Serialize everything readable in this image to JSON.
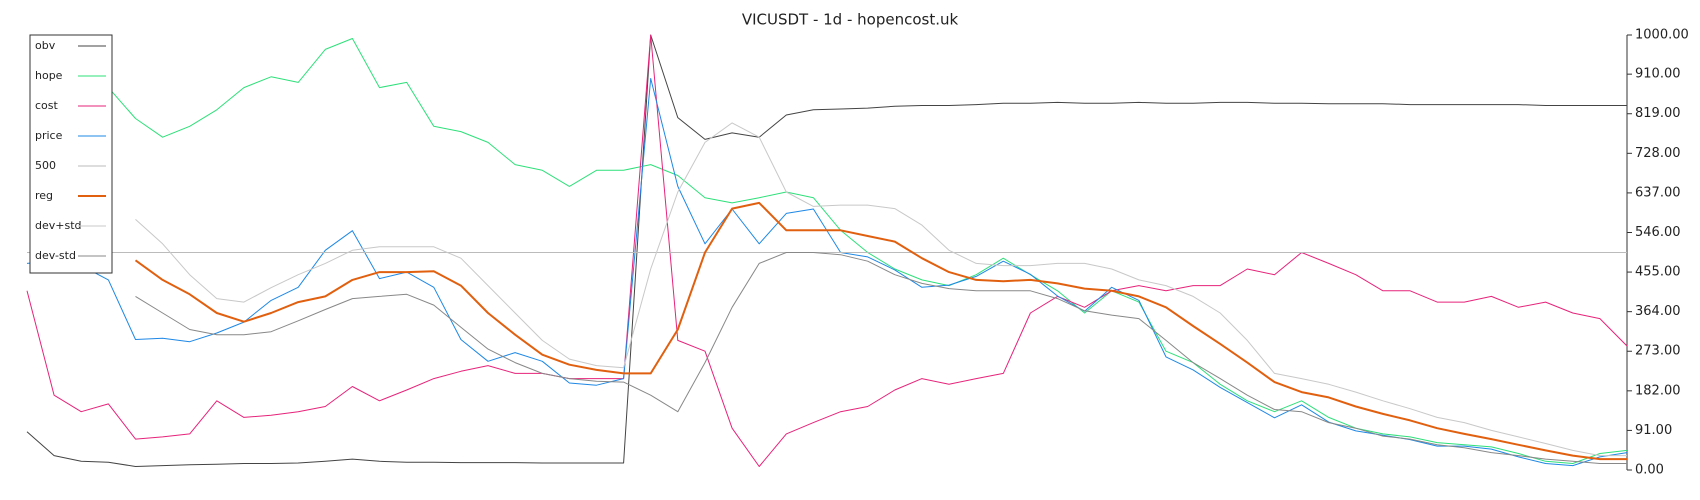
{
  "chart_data": {
    "type": "line",
    "title": "VICUSDT - 1d - hopencost.uk",
    "categories": [
      null,
      null,
      null,
      null,
      null,
      null,
      null,
      null,
      null,
      null,
      null,
      null,
      null,
      null,
      null,
      null,
      null,
      null,
      null,
      null,
      null,
      null,
      null,
      null,
      null,
      null,
      null,
      null,
      null,
      null,
      null,
      null,
      null,
      null,
      null,
      null,
      null,
      null,
      null,
      null,
      null,
      null,
      null,
      null,
      null,
      null,
      null,
      null,
      null,
      null,
      null,
      null,
      null,
      null,
      null,
      null,
      null,
      null,
      null,
      null
    ],
    "ylim": [
      0,
      1000
    ],
    "yticks": [
      {
        "value": 0,
        "label": "0.00"
      },
      {
        "value": 91,
        "label": "91.00"
      },
      {
        "value": 182,
        "label": "182.00"
      },
      {
        "value": 273,
        "label": "273.00"
      },
      {
        "value": 364,
        "label": "364.00"
      },
      {
        "value": 455,
        "label": "455.00"
      },
      {
        "value": 546,
        "label": "546.00"
      },
      {
        "value": 637,
        "label": "637.00"
      },
      {
        "value": 728,
        "label": "728.00"
      },
      {
        "value": 819,
        "label": "819.00"
      },
      {
        "value": 910,
        "label": "910.00"
      },
      {
        "value": 1000,
        "label": "1000.00"
      }
    ],
    "y_axis_side": "right",
    "grid": false,
    "legend": "upper left",
    "series": [
      {
        "name": "obv",
        "color": "#444444",
        "line_width": 1,
        "values": [
          88,
          33,
          20,
          18,
          8,
          10,
          12,
          13,
          15,
          15,
          16,
          20,
          25,
          20,
          18,
          18,
          17,
          17,
          17,
          16,
          16,
          16,
          16,
          1000,
          810,
          760,
          775,
          765,
          816,
          828,
          830,
          832,
          836,
          838,
          838,
          840,
          843,
          843,
          845,
          843,
          843,
          845,
          843,
          843,
          845,
          845,
          843,
          843,
          842,
          842,
          842,
          840,
          840,
          840,
          840,
          840,
          838,
          838,
          838,
          838
        ]
      },
      {
        "name": "hope",
        "color": "#2ee07a",
        "line_width": 1,
        "values": [
          null,
          null,
          null,
          879,
          808,
          765,
          790,
          828,
          879,
          904,
          891,
          967,
          992,
          879,
          891,
          790,
          778,
          753,
          702,
          689,
          652,
          689,
          689,
          702,
          677,
          626,
          614,
          626,
          639,
          626,
          551,
          500,
          462,
          437,
          424,
          449,
          487,
          449,
          412,
          361,
          412,
          386,
          273,
          247,
          197,
          159,
          134,
          159,
          121,
          96,
          83,
          76,
          63,
          58,
          53,
          38,
          20,
          15,
          38,
          45
        ]
      },
      {
        "name": "cost",
        "color": "#e6237a",
        "line_width": 1,
        "values": [
          412,
          172,
          134,
          152,
          71,
          76,
          83,
          159,
          121,
          126,
          134,
          146,
          192,
          159,
          184,
          210,
          227,
          240,
          222,
          222,
          210,
          210,
          210,
          1000,
          298,
          273,
          96,
          8,
          83,
          109,
          134,
          146,
          184,
          210,
          197,
          210,
          222,
          361,
          399,
          374,
          412,
          424,
          412,
          424,
          424,
          462,
          449,
          500,
          475,
          449,
          412,
          412,
          386,
          386,
          399,
          374,
          386,
          361,
          348,
          285
        ]
      },
      {
        "name": "price",
        "color": "#1e88e5",
        "line_width": 1,
        "values": [
          475,
          480,
          470,
          437,
          300,
          303,
          295,
          315,
          340,
          390,
          420,
          505,
          550,
          440,
          455,
          420,
          300,
          250,
          270,
          250,
          200,
          195,
          210,
          900,
          652,
          520,
          600,
          520,
          590,
          600,
          500,
          490,
          460,
          420,
          425,
          445,
          480,
          450,
          400,
          365,
          420,
          390,
          260,
          230,
          190,
          155,
          120,
          150,
          110,
          90,
          80,
          70,
          55,
          55,
          48,
          30,
          15,
          10,
          30,
          40
        ]
      },
      {
        "name": "500",
        "color": "#bbbbbb",
        "line_width": 1,
        "values": [
          500,
          500,
          500,
          500,
          500,
          500,
          500,
          500,
          500,
          500,
          500,
          500,
          500,
          500,
          500,
          500,
          500,
          500,
          500,
          500,
          500,
          500,
          500,
          500,
          500,
          500,
          500,
          500,
          500,
          500,
          500,
          500,
          500,
          500,
          500,
          500,
          500,
          500,
          500,
          500,
          500,
          500,
          500,
          500,
          500,
          500,
          500,
          500,
          500,
          500,
          500,
          500,
          500,
          500,
          500,
          500,
          500,
          500,
          500,
          500
        ]
      },
      {
        "name": "reg",
        "color": "#e06010",
        "line_width": 2,
        "values": [
          null,
          null,
          null,
          null,
          482,
          437,
          404,
          361,
          341,
          361,
          386,
          399,
          437,
          455,
          455,
          457,
          424,
          361,
          311,
          265,
          242,
          230,
          222,
          222,
          323,
          500,
          601,
          614,
          551,
          551,
          551,
          538,
          525,
          487,
          455,
          437,
          434,
          437,
          429,
          417,
          412,
          399,
          374,
          331,
          290,
          247,
          202,
          179,
          167,
          146,
          129,
          114,
          96,
          83,
          71,
          58,
          45,
          33,
          25,
          25
        ]
      },
      {
        "name": "dev+std",
        "color": "#c8c8c8",
        "line_width": 1,
        "values": [
          null,
          null,
          null,
          null,
          576,
          520,
          449,
          394,
          386,
          419,
          449,
          475,
          505,
          513,
          513,
          513,
          487,
          424,
          361,
          298,
          255,
          240,
          235,
          462,
          639,
          753,
          798,
          765,
          639,
          606,
          609,
          609,
          601,
          563,
          505,
          475,
          470,
          470,
          475,
          475,
          462,
          437,
          424,
          399,
          361,
          298,
          222,
          210,
          197,
          179,
          159,
          141,
          121,
          109,
          91,
          76,
          61,
          45,
          33,
          33
        ]
      },
      {
        "name": "dev-std",
        "color": "#888888",
        "line_width": 1,
        "values": [
          null,
          null,
          null,
          null,
          399,
          361,
          323,
          311,
          311,
          318,
          343,
          369,
          394,
          399,
          404,
          379,
          328,
          278,
          247,
          222,
          210,
          204,
          202,
          172,
          134,
          247,
          374,
          475,
          500,
          500,
          495,
          480,
          449,
          429,
          417,
          412,
          412,
          412,
          394,
          366,
          356,
          348,
          298,
          247,
          210,
          172,
          139,
          134,
          109,
          96,
          78,
          71,
          58,
          51,
          40,
          33,
          25,
          20,
          15,
          15
        ]
      }
    ]
  }
}
